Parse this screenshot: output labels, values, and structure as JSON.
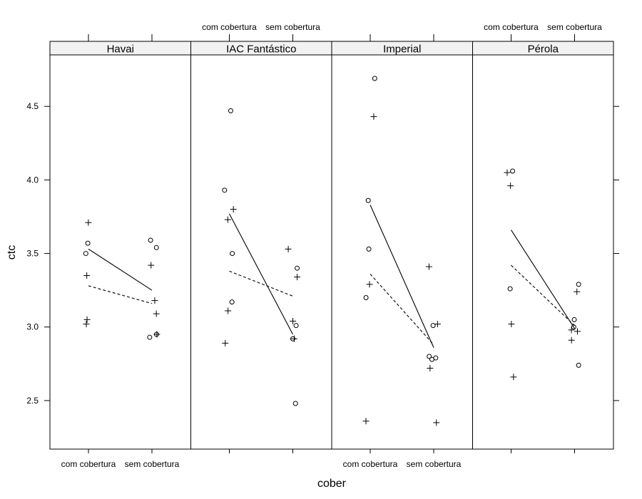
{
  "chart_data": {
    "type": "scatter",
    "xlabel": "cober",
    "ylabel": "ctc",
    "categories": [
      "com cobertura",
      "sem cobertura"
    ],
    "ylim": [
      2.17,
      4.85
    ],
    "yticks": [
      2.5,
      3.0,
      3.5,
      4.0,
      4.5
    ],
    "ytick_labels": [
      "2.5",
      "3.0",
      "3.5",
      "4.0",
      "4.5"
    ],
    "grid": false,
    "marker_symbols": [
      "o",
      "+"
    ],
    "line_styles": [
      "solid",
      "dashed"
    ],
    "panels": [
      {
        "name": "Havai",
        "circles": [
          {
            "x": "com cobertura",
            "y": 3.57
          },
          {
            "x": "com cobertura",
            "y": 3.5
          },
          {
            "x": "sem cobertura",
            "y": 3.59
          },
          {
            "x": "sem cobertura",
            "y": 3.54
          },
          {
            "x": "sem cobertura",
            "y": 2.95
          },
          {
            "x": "sem cobertura",
            "y": 2.93
          }
        ],
        "crosses": [
          {
            "x": "com cobertura",
            "y": 3.71
          },
          {
            "x": "com cobertura",
            "y": 3.35
          },
          {
            "x": "com cobertura",
            "y": 3.05
          },
          {
            "x": "com cobertura",
            "y": 3.02
          },
          {
            "x": "sem cobertura",
            "y": 3.42
          },
          {
            "x": "sem cobertura",
            "y": 3.18
          },
          {
            "x": "sem cobertura",
            "y": 3.09
          },
          {
            "x": "sem cobertura",
            "y": 2.95
          }
        ],
        "solid_line": [
          3.53,
          3.25
        ],
        "dashed_line": [
          3.28,
          3.16
        ]
      },
      {
        "name": "IAC Fantástico",
        "circles": [
          {
            "x": "com cobertura",
            "y": 4.47
          },
          {
            "x": "com cobertura",
            "y": 3.93
          },
          {
            "x": "com cobertura",
            "y": 3.5
          },
          {
            "x": "com cobertura",
            "y": 3.17
          },
          {
            "x": "sem cobertura",
            "y": 3.4
          },
          {
            "x": "sem cobertura",
            "y": 3.01
          },
          {
            "x": "sem cobertura",
            "y": 2.92
          },
          {
            "x": "sem cobertura",
            "y": 2.48
          }
        ],
        "crosses": [
          {
            "x": "com cobertura",
            "y": 3.8
          },
          {
            "x": "com cobertura",
            "y": 3.73
          },
          {
            "x": "com cobertura",
            "y": 3.11
          },
          {
            "x": "com cobertura",
            "y": 2.89
          },
          {
            "x": "sem cobertura",
            "y": 3.53
          },
          {
            "x": "sem cobertura",
            "y": 3.34
          },
          {
            "x": "sem cobertura",
            "y": 3.04
          },
          {
            "x": "sem cobertura",
            "y": 2.92
          }
        ],
        "solid_line": [
          3.77,
          2.95
        ],
        "dashed_line": [
          3.38,
          3.21
        ]
      },
      {
        "name": "Imperial",
        "circles": [
          {
            "x": "com cobertura",
            "y": 4.69
          },
          {
            "x": "com cobertura",
            "y": 3.86
          },
          {
            "x": "com cobertura",
            "y": 3.53
          },
          {
            "x": "com cobertura",
            "y": 3.2
          },
          {
            "x": "sem cobertura",
            "y": 3.01
          },
          {
            "x": "sem cobertura",
            "y": 2.8
          },
          {
            "x": "sem cobertura",
            "y": 2.79
          },
          {
            "x": "sem cobertura",
            "y": 2.78
          }
        ],
        "crosses": [
          {
            "x": "com cobertura",
            "y": 4.43
          },
          {
            "x": "com cobertura",
            "y": 3.29
          },
          {
            "x": "com cobertura",
            "y": 2.36
          },
          {
            "x": "sem cobertura",
            "y": 3.41
          },
          {
            "x": "sem cobertura",
            "y": 3.02
          },
          {
            "x": "sem cobertura",
            "y": 2.72
          },
          {
            "x": "sem cobertura",
            "y": 2.35
          }
        ],
        "solid_line": [
          3.83,
          2.86
        ],
        "dashed_line": [
          3.36,
          2.88
        ]
      },
      {
        "name": "Pérola",
        "circles": [
          {
            "x": "com cobertura",
            "y": 4.06
          },
          {
            "x": "com cobertura",
            "y": 3.26
          },
          {
            "x": "sem cobertura",
            "y": 3.29
          },
          {
            "x": "sem cobertura",
            "y": 3.05
          },
          {
            "x": "sem cobertura",
            "y": 3.0
          },
          {
            "x": "sem cobertura",
            "y": 2.74
          }
        ],
        "crosses": [
          {
            "x": "com cobertura",
            "y": 4.05
          },
          {
            "x": "com cobertura",
            "y": 3.96
          },
          {
            "x": "com cobertura",
            "y": 3.02
          },
          {
            "x": "com cobertura",
            "y": 2.66
          },
          {
            "x": "sem cobertura",
            "y": 3.24
          },
          {
            "x": "sem cobertura",
            "y": 2.98
          },
          {
            "x": "sem cobertura",
            "y": 2.97
          },
          {
            "x": "sem cobertura",
            "y": 2.91
          }
        ],
        "solid_line": [
          3.66,
          2.99
        ],
        "dashed_line": [
          3.42,
          3.01
        ]
      }
    ]
  }
}
